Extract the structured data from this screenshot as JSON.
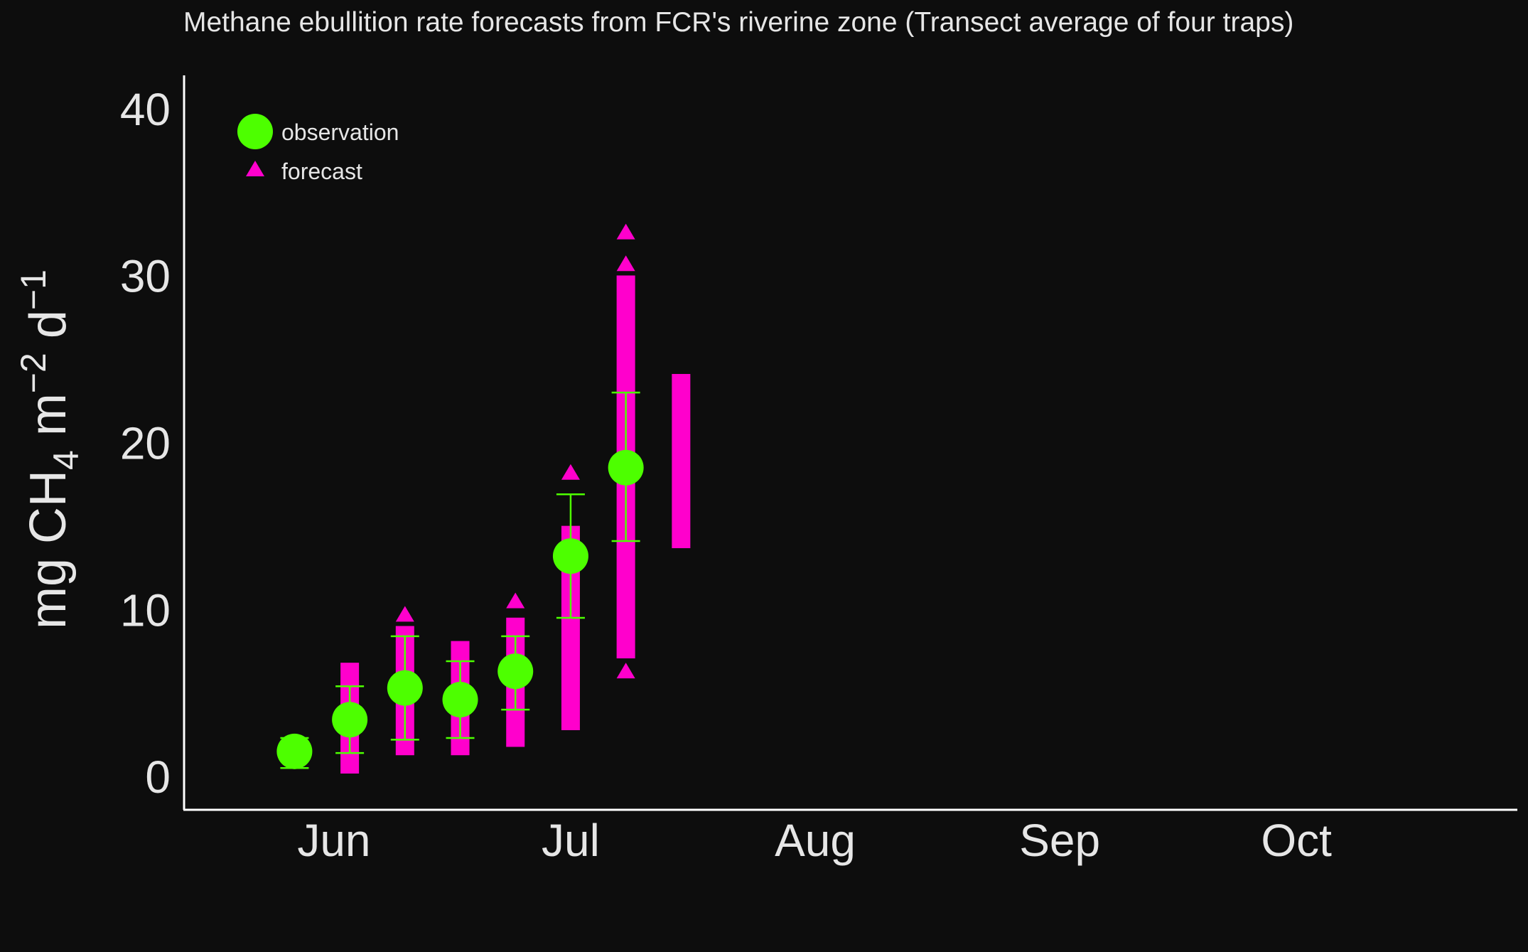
{
  "chart_data": {
    "type": "scatter",
    "title": "Methane ebullition rate forecasts from FCR's riverine zone  (Transect average of four traps)",
    "ylabel_parts": [
      "mg CH",
      "4",
      " m",
      "−2",
      " d",
      "−1"
    ],
    "xlim": [
      "2019-05-13",
      "2019-10-29"
    ],
    "ylim": [
      -2,
      42
    ],
    "yticks": [
      0,
      10,
      20,
      30,
      40
    ],
    "xticks": [
      {
        "date": "2019-06-01",
        "label": "Jun"
      },
      {
        "date": "2019-07-01",
        "label": "Jul"
      },
      {
        "date": "2019-08-01",
        "label": "Aug"
      },
      {
        "date": "2019-09-01",
        "label": "Sep"
      },
      {
        "date": "2019-10-01",
        "label": "Oct"
      }
    ],
    "legend_position": "top-left",
    "series": [
      {
        "name": "observation",
        "marker": "circle",
        "color": "#4dff00",
        "points": [
          {
            "date": "2019-05-27",
            "y": 1.5,
            "ymin": 0.5,
            "ymax": 2.3
          },
          {
            "date": "2019-06-03",
            "y": 3.4,
            "ymin": 1.4,
            "ymax": 5.4
          },
          {
            "date": "2019-06-10",
            "y": 5.3,
            "ymin": 2.2,
            "ymax": 8.4
          },
          {
            "date": "2019-06-17",
            "y": 4.6,
            "ymin": 2.3,
            "ymax": 6.9
          },
          {
            "date": "2019-06-24",
            "y": 6.3,
            "ymin": 4.0,
            "ymax": 8.4
          },
          {
            "date": "2019-07-01",
            "y": 13.2,
            "ymin": 9.5,
            "ymax": 16.9
          },
          {
            "date": "2019-07-08",
            "y": 18.5,
            "ymin": 14.1,
            "ymax": 23.0
          }
        ]
      },
      {
        "name": "forecast",
        "marker": "triangle",
        "color": "#ff00cc",
        "ranges": [
          {
            "date": "2019-06-03",
            "ymin": 0.6,
            "ymax": 6.3,
            "outliers": []
          },
          {
            "date": "2019-06-10",
            "ymin": 1.7,
            "ymax": 8.5,
            "outliers": [
              9.7
            ]
          },
          {
            "date": "2019-06-17",
            "ymin": 1.7,
            "ymax": 7.6,
            "outliers": []
          },
          {
            "date": "2019-06-24",
            "ymin": 2.2,
            "ymax": 9.0,
            "outliers": [
              10.5
            ]
          },
          {
            "date": "2019-07-01",
            "ymin": 3.2,
            "ymax": 14.5,
            "outliers": [
              18.2
            ]
          },
          {
            "date": "2019-07-08",
            "ymin": 7.5,
            "ymax": 29.5,
            "outliers": [
              6.3,
              30.7,
              32.6
            ]
          },
          {
            "date": "2019-07-15",
            "ymin": 14.1,
            "ymax": 23.6,
            "outliers": []
          }
        ]
      }
    ]
  }
}
